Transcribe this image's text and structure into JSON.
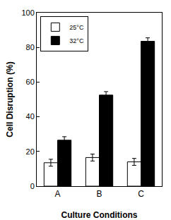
{
  "chart_data": {
    "type": "bar",
    "x_label": "Culture Conditions",
    "y_label": "Cell Disruption (%)",
    "categories": [
      "A",
      "B",
      "C"
    ],
    "series": [
      {
        "name": "25°C",
        "color": "#ffffff",
        "values": [
          13.5,
          16.5,
          14
        ],
        "errors": [
          2,
          2,
          2
        ]
      },
      {
        "name": "32°C",
        "color": "#000000",
        "values": [
          26.5,
          52.5,
          83.5
        ],
        "errors": [
          2,
          2,
          2
        ]
      }
    ],
    "ylim": [
      0,
      100
    ],
    "yticks": [
      0,
      20,
      40,
      60,
      80,
      100
    ],
    "grid": false,
    "legend": "top-left"
  }
}
